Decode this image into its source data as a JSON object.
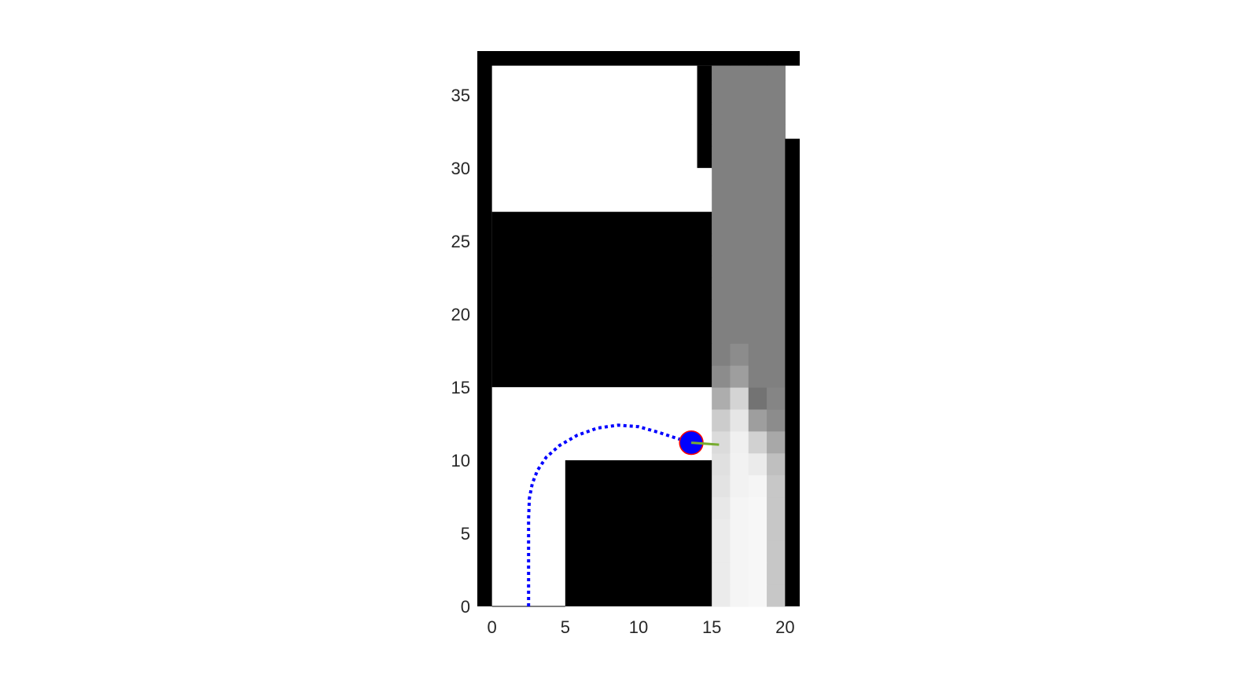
{
  "chart_data": {
    "type": "heatmap",
    "title": "",
    "xlabel": "",
    "ylabel": "",
    "xlim": [
      -1,
      21
    ],
    "ylim": [
      0,
      38
    ],
    "x_ticks": [
      "0",
      "5",
      "10",
      "15",
      "20"
    ],
    "y_ticks": [
      "0",
      "5",
      "10",
      "15",
      "20",
      "25",
      "30",
      "35"
    ],
    "grid": false,
    "colors": {
      "obstacle": "#000000",
      "free": "#ffffff",
      "path": "#0000ff",
      "robot_fill": "#0000ff",
      "robot_edge": "#ff0000",
      "heading": "#77ac30"
    },
    "obstacles": [
      {
        "x0": -1,
        "x1": 21,
        "y0": 37,
        "y1": 38
      },
      {
        "x0": -1,
        "x1": 0,
        "y0": 0,
        "y1": 38
      },
      {
        "x0": 14,
        "x1": 15,
        "y0": 30,
        "y1": 37
      },
      {
        "x0": 20,
        "x1": 21,
        "y0": 0,
        "y1": 32
      },
      {
        "x0": 0,
        "x1": 15,
        "y0": 15,
        "y1": 27
      },
      {
        "x0": 5,
        "x1": 15,
        "y0": 0,
        "y1": 10
      }
    ],
    "heatmap": {
      "x_range": [
        15,
        20
      ],
      "y_range": [
        0,
        37
      ],
      "cols": 4,
      "cell_height": 1.5,
      "default_shade": 0.5,
      "cells": [
        [
          0.92,
          0.96,
          0.97,
          0.78
        ],
        [
          0.92,
          0.96,
          0.97,
          0.78
        ],
        [
          0.92,
          0.96,
          0.97,
          0.78
        ],
        [
          0.92,
          0.96,
          0.97,
          0.78
        ],
        [
          0.91,
          0.96,
          0.97,
          0.78
        ],
        [
          0.89,
          0.95,
          0.96,
          0.78
        ],
        [
          0.88,
          0.95,
          0.92,
          0.75
        ],
        [
          0.86,
          0.94,
          0.82,
          0.66
        ],
        [
          0.8,
          0.9,
          0.62,
          0.55
        ],
        [
          0.68,
          0.83,
          0.45,
          0.52
        ],
        [
          0.55,
          0.62,
          0.5,
          0.5
        ],
        [
          0.5,
          0.55,
          0.5,
          0.5
        ]
      ]
    },
    "path": {
      "x": [
        2.5,
        2.5,
        2.5,
        2.55,
        2.75,
        3.1,
        3.7,
        4.6,
        5.8,
        7.2,
        8.6,
        10.0,
        11.4,
        12.6,
        13.6
      ],
      "y": [
        0,
        3,
        6,
        7.4,
        8.4,
        9.3,
        10.2,
        11.0,
        11.7,
        12.2,
        12.4,
        12.3,
        11.9,
        11.5,
        11.2
      ]
    },
    "robot": {
      "x": 13.6,
      "y": 11.2,
      "radius": 0.8,
      "heading_deg": -4,
      "heading_length": 1.9
    }
  }
}
